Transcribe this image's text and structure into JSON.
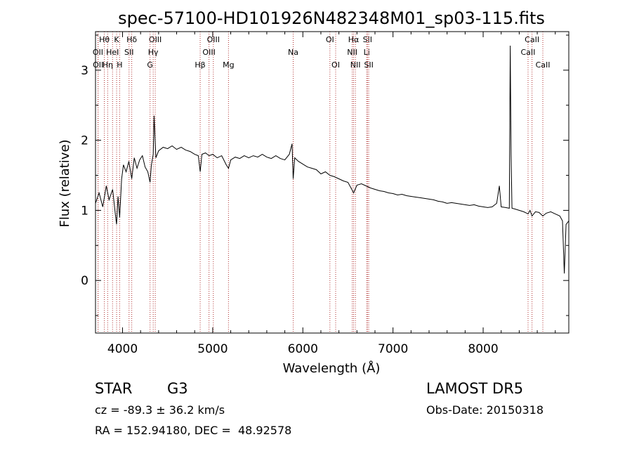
{
  "chart_data": {
    "type": "line",
    "title": "spec-57100-HD101926N482348M01_sp03-115.fits",
    "xlabel": "Wavelength (Å)",
    "ylabel": "Flux (relative)",
    "xlim": [
      3700,
      8950
    ],
    "ylim": [
      -0.75,
      3.55
    ],
    "x_ticks": [
      4000,
      5000,
      6000,
      7000,
      8000
    ],
    "y_ticks": [
      0,
      1,
      2,
      3
    ],
    "grid": false,
    "spectral_lines": [
      {
        "label": "Hθ",
        "wavelength": 3798,
        "row": 1
      },
      {
        "label": "OII",
        "wavelength": 3727,
        "row": 2
      },
      {
        "label": "OII",
        "wavelength": 3729,
        "row": 3
      },
      {
        "label": "Hη",
        "wavelength": 3835,
        "row": 3
      },
      {
        "label": "K",
        "wavelength": 3934,
        "row": 1
      },
      {
        "label": "HeI",
        "wavelength": 3889,
        "row": 2
      },
      {
        "label": "H",
        "wavelength": 3968,
        "row": 3
      },
      {
        "label": "Hδ",
        "wavelength": 4102,
        "row": 1
      },
      {
        "label": "SII",
        "wavelength": 4072,
        "row": 2
      },
      {
        "label": "OIII",
        "wavelength": 4363,
        "row": 1
      },
      {
        "label": "Hγ",
        "wavelength": 4340,
        "row": 2
      },
      {
        "label": "G",
        "wavelength": 4305,
        "row": 3
      },
      {
        "label": "OIII",
        "wavelength": 5007,
        "row": 1
      },
      {
        "label": "OIII",
        "wavelength": 4959,
        "row": 2
      },
      {
        "label": "Hβ",
        "wavelength": 4861,
        "row": 3
      },
      {
        "label": "Mg",
        "wavelength": 5175,
        "row": 3
      },
      {
        "label": "Na",
        "wavelength": 5893,
        "row": 2
      },
      {
        "label": "OI",
        "wavelength": 6300,
        "row": 1
      },
      {
        "label": "OI",
        "wavelength": 6364,
        "row": 3
      },
      {
        "label": "Hα",
        "wavelength": 6563,
        "row": 1
      },
      {
        "label": "NII",
        "wavelength": 6548,
        "row": 2
      },
      {
        "label": "NII",
        "wavelength": 6583,
        "row": 3
      },
      {
        "label": "SII",
        "wavelength": 6717,
        "row": 1
      },
      {
        "label": "Li",
        "wavelength": 6708,
        "row": 2
      },
      {
        "label": "SII",
        "wavelength": 6731,
        "row": 3
      },
      {
        "label": "CaII",
        "wavelength": 8542,
        "row": 1
      },
      {
        "label": "CaII",
        "wavelength": 8498,
        "row": 2
      },
      {
        "label": "CaII",
        "wavelength": 8662,
        "row": 3
      }
    ],
    "series": [
      {
        "points": [
          [
            3700,
            1.1
          ],
          [
            3740,
            1.25
          ],
          [
            3780,
            1.05
          ],
          [
            3820,
            1.35
          ],
          [
            3850,
            1.15
          ],
          [
            3890,
            1.3
          ],
          [
            3920,
            0.95
          ],
          [
            3934,
            0.8
          ],
          [
            3950,
            1.2
          ],
          [
            3968,
            0.9
          ],
          [
            3990,
            1.45
          ],
          [
            4010,
            1.65
          ],
          [
            4040,
            1.55
          ],
          [
            4070,
            1.7
          ],
          [
            4102,
            1.45
          ],
          [
            4130,
            1.75
          ],
          [
            4160,
            1.6
          ],
          [
            4190,
            1.72
          ],
          [
            4220,
            1.78
          ],
          [
            4250,
            1.62
          ],
          [
            4280,
            1.55
          ],
          [
            4305,
            1.4
          ],
          [
            4320,
            1.65
          ],
          [
            4340,
            1.8
          ],
          [
            4350,
            2.35
          ],
          [
            4370,
            1.75
          ],
          [
            4400,
            1.85
          ],
          [
            4450,
            1.9
          ],
          [
            4500,
            1.88
          ],
          [
            4550,
            1.92
          ],
          [
            4600,
            1.87
          ],
          [
            4650,
            1.9
          ],
          [
            4700,
            1.86
          ],
          [
            4750,
            1.84
          ],
          [
            4800,
            1.8
          ],
          [
            4840,
            1.78
          ],
          [
            4861,
            1.55
          ],
          [
            4880,
            1.8
          ],
          [
            4920,
            1.82
          ],
          [
            4960,
            1.78
          ],
          [
            5000,
            1.8
          ],
          [
            5050,
            1.75
          ],
          [
            5100,
            1.78
          ],
          [
            5150,
            1.65
          ],
          [
            5175,
            1.6
          ],
          [
            5200,
            1.72
          ],
          [
            5250,
            1.76
          ],
          [
            5300,
            1.74
          ],
          [
            5350,
            1.78
          ],
          [
            5400,
            1.75
          ],
          [
            5450,
            1.78
          ],
          [
            5500,
            1.76
          ],
          [
            5550,
            1.8
          ],
          [
            5600,
            1.76
          ],
          [
            5650,
            1.74
          ],
          [
            5700,
            1.78
          ],
          [
            5750,
            1.74
          ],
          [
            5800,
            1.72
          ],
          [
            5850,
            1.8
          ],
          [
            5880,
            1.95
          ],
          [
            5893,
            1.45
          ],
          [
            5910,
            1.75
          ],
          [
            5950,
            1.7
          ],
          [
            6000,
            1.66
          ],
          [
            6050,
            1.62
          ],
          [
            6100,
            1.6
          ],
          [
            6150,
            1.58
          ],
          [
            6200,
            1.52
          ],
          [
            6250,
            1.55
          ],
          [
            6300,
            1.5
          ],
          [
            6350,
            1.48
          ],
          [
            6400,
            1.45
          ],
          [
            6450,
            1.42
          ],
          [
            6500,
            1.4
          ],
          [
            6563,
            1.25
          ],
          [
            6600,
            1.36
          ],
          [
            6650,
            1.38
          ],
          [
            6700,
            1.35
          ],
          [
            6750,
            1.32
          ],
          [
            6800,
            1.3
          ],
          [
            6850,
            1.28
          ],
          [
            6900,
            1.27
          ],
          [
            6950,
            1.25
          ],
          [
            7000,
            1.24
          ],
          [
            7050,
            1.22
          ],
          [
            7100,
            1.23
          ],
          [
            7150,
            1.21
          ],
          [
            7200,
            1.2
          ],
          [
            7250,
            1.19
          ],
          [
            7300,
            1.18
          ],
          [
            7350,
            1.17
          ],
          [
            7400,
            1.16
          ],
          [
            7450,
            1.15
          ],
          [
            7500,
            1.13
          ],
          [
            7550,
            1.12
          ],
          [
            7600,
            1.1
          ],
          [
            7650,
            1.11
          ],
          [
            7700,
            1.1
          ],
          [
            7750,
            1.09
          ],
          [
            7800,
            1.08
          ],
          [
            7850,
            1.07
          ],
          [
            7900,
            1.08
          ],
          [
            7950,
            1.06
          ],
          [
            8000,
            1.05
          ],
          [
            8050,
            1.04
          ],
          [
            8100,
            1.05
          ],
          [
            8150,
            1.1
          ],
          [
            8180,
            1.35
          ],
          [
            8200,
            1.05
          ],
          [
            8250,
            1.04
          ],
          [
            8290,
            1.03
          ],
          [
            8300,
            3.35
          ],
          [
            8310,
            1.8
          ],
          [
            8320,
            1.03
          ],
          [
            8350,
            1.02
          ],
          [
            8400,
            1.0
          ],
          [
            8450,
            0.98
          ],
          [
            8498,
            0.95
          ],
          [
            8520,
            1.0
          ],
          [
            8542,
            0.92
          ],
          [
            8580,
            0.98
          ],
          [
            8620,
            0.97
          ],
          [
            8662,
            0.92
          ],
          [
            8700,
            0.96
          ],
          [
            8750,
            0.98
          ],
          [
            8800,
            0.95
          ],
          [
            8850,
            0.92
          ],
          [
            8880,
            0.85
          ],
          [
            8900,
            0.1
          ],
          [
            8920,
            0.8
          ],
          [
            8950,
            0.85
          ]
        ]
      }
    ]
  },
  "info": {
    "object_type": "STAR",
    "subclass": "G3",
    "cz_line": "cz = -89.3 ± 36.2 km/s",
    "coords_line": "RA = 152.94180, DEC =  48.92578",
    "survey": "LAMOST DR5",
    "obs_date": "Obs-Date: 20150318"
  },
  "colors": {
    "line_marker": "#b03030",
    "axes": "#000000"
  }
}
